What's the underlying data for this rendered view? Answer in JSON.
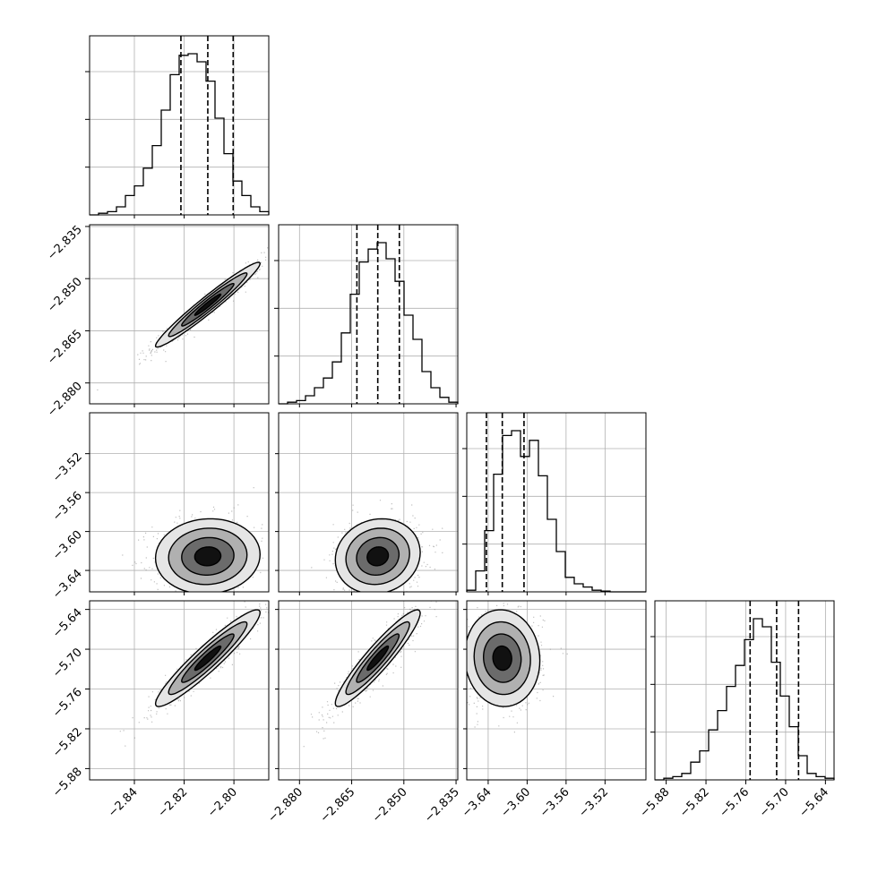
{
  "chart_data": {
    "type": "corner",
    "title": "",
    "n_params": 4,
    "grid": true,
    "quantile_lines": "dashed",
    "parameters": [
      {
        "axis_label": "",
        "range": [
          -2.858,
          -2.786
        ],
        "ticks": [
          -2.84,
          -2.82,
          -2.8
        ],
        "tick_labels": [
          "−2.84",
          "−2.82",
          "−2.80"
        ],
        "quantiles": [
          -2.8213,
          -2.8105,
          -2.8003
        ],
        "histogram": [
          0,
          0.01,
          0.02,
          0.05,
          0.12,
          0.18,
          0.29,
          0.43,
          0.65,
          0.87,
          0.99,
          1.0,
          0.95,
          0.83,
          0.6,
          0.38,
          0.21,
          0.12,
          0.05,
          0.02
        ]
      },
      {
        "axis_label": "",
        "range": [
          -2.886,
          -2.8345
        ],
        "ticks": [
          -2.88,
          -2.865,
          -2.85,
          -2.835
        ],
        "tick_labels": [
          "−2.880",
          "−2.865",
          "−2.850",
          "−2.835"
        ],
        "quantiles": [
          -2.8635,
          -2.8575,
          -2.8513
        ],
        "histogram": [
          0,
          0.01,
          0.02,
          0.05,
          0.1,
          0.16,
          0.26,
          0.44,
          0.68,
          0.88,
          0.96,
          1.0,
          0.9,
          0.76,
          0.55,
          0.4,
          0.2,
          0.1,
          0.04,
          0.01
        ]
      },
      {
        "axis_label": "",
        "range": [
          -3.662,
          -3.478
        ],
        "ticks": [
          -3.64,
          -3.6,
          -3.56,
          -3.52
        ],
        "tick_labels": [
          "−3.64",
          "−3.60",
          "−3.56",
          "−3.52"
        ],
        "quantiles": [
          -3.6418,
          -3.6255,
          -3.6032
        ],
        "histogram": [
          0.01,
          0.13,
          0.38,
          0.73,
          0.97,
          1.0,
          0.84,
          0.94,
          0.72,
          0.45,
          0.25,
          0.09,
          0.05,
          0.03,
          0.01,
          0.005,
          0,
          0,
          0,
          0
        ]
      },
      {
        "axis_label": "",
        "range": [
          -5.897,
          -5.627
        ],
        "ticks": [
          -5.88,
          -5.82,
          -5.76,
          -5.7,
          -5.64
        ],
        "tick_labels": [
          "−5.88",
          "−5.82",
          "−5.76",
          "−5.70",
          "−5.64"
        ],
        "quantiles": [
          -5.7535,
          -5.7135,
          -5.6805
        ],
        "histogram": [
          0,
          0.01,
          0.02,
          0.04,
          0.11,
          0.18,
          0.31,
          0.43,
          0.58,
          0.71,
          0.87,
          1.0,
          0.95,
          0.73,
          0.52,
          0.33,
          0.15,
          0.04,
          0.02,
          0.01
        ]
      }
    ],
    "pairs": [
      {
        "row": 1,
        "col": 0,
        "correlation": 0.97
      },
      {
        "row": 2,
        "col": 0,
        "correlation": 0.05
      },
      {
        "row": 2,
        "col": 1,
        "correlation": 0.1
      },
      {
        "row": 3,
        "col": 0,
        "correlation": 0.94
      },
      {
        "row": 3,
        "col": 1,
        "correlation": 0.93
      },
      {
        "row": 3,
        "col": 2,
        "correlation": -0.05
      }
    ]
  }
}
